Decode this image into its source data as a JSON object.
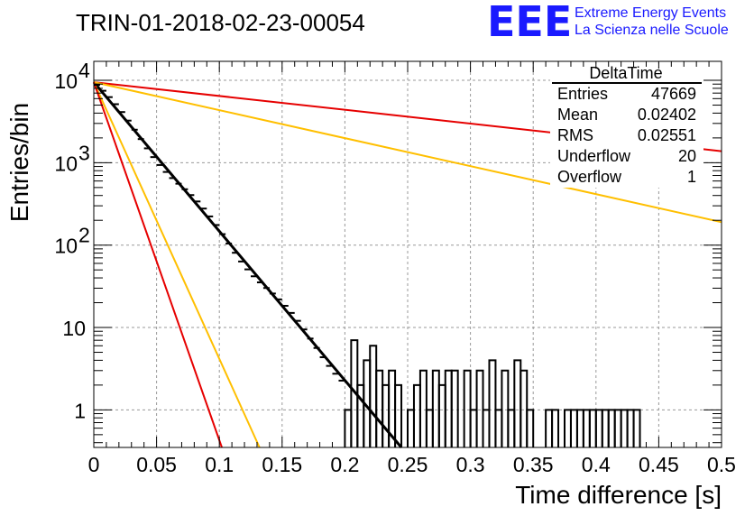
{
  "title": "TRIN-01-2018-02-23-00054",
  "logo": {
    "text": "EEE",
    "line1": "Extreme Energy Events",
    "line2": "La Scienza nelle Scuole",
    "color": "#1a1aff"
  },
  "stats": {
    "name": "DeltaTime",
    "rows": [
      {
        "label": "Entries",
        "value": "47669"
      },
      {
        "label": "Mean",
        "value": "0.02402"
      },
      {
        "label": "RMS",
        "value": "0.02551"
      },
      {
        "label": "Underflow",
        "value": "20"
      },
      {
        "label": "Overflow",
        "value": "1"
      }
    ]
  },
  "chart_data": {
    "type": "histogram",
    "xlabel": "Time difference [s]",
    "ylabel": "Entries/bin",
    "xlim": [
      0,
      0.5
    ],
    "ylim": [
      0.35,
      17000
    ],
    "log_y": true,
    "grid": true,
    "legend_position": "top-right",
    "x_ticks": [
      {
        "v": 0,
        "label": "0"
      },
      {
        "v": 0.05,
        "label": "0.05"
      },
      {
        "v": 0.1,
        "label": "0.1"
      },
      {
        "v": 0.15,
        "label": "0.15"
      },
      {
        "v": 0.2,
        "label": "0.2"
      },
      {
        "v": 0.25,
        "label": "0.25"
      },
      {
        "v": 0.3,
        "label": "0.3"
      },
      {
        "v": 0.35,
        "label": "0.35"
      },
      {
        "v": 0.4,
        "label": "0.4"
      },
      {
        "v": 0.45,
        "label": "0.45"
      },
      {
        "v": 0.5,
        "label": "0.5"
      }
    ],
    "y_ticks": [
      {
        "v": 1,
        "label": "1"
      },
      {
        "v": 10,
        "label": "10"
      },
      {
        "v": 100,
        "label": "10",
        "exp": "2"
      },
      {
        "v": 1000,
        "label": "10",
        "exp": "3"
      },
      {
        "v": 10000,
        "label": "10",
        "exp": "4"
      }
    ],
    "bin_width": 0.005,
    "bins": [
      [
        0.2,
        1
      ],
      [
        0.205,
        7
      ],
      [
        0.21,
        2
      ],
      [
        0.215,
        4
      ],
      [
        0.22,
        6
      ],
      [
        0.225,
        3
      ],
      [
        0.23,
        2
      ],
      [
        0.235,
        3
      ],
      [
        0.24,
        2
      ],
      [
        0.25,
        1
      ],
      [
        0.255,
        2
      ],
      [
        0.26,
        3
      ],
      [
        0.265,
        1
      ],
      [
        0.27,
        3
      ],
      [
        0.275,
        2
      ],
      [
        0.28,
        3
      ],
      [
        0.285,
        3
      ],
      [
        0.295,
        3
      ],
      [
        0.3,
        1
      ],
      [
        0.305,
        3
      ],
      [
        0.31,
        1
      ],
      [
        0.315,
        4
      ],
      [
        0.32,
        1
      ],
      [
        0.325,
        3
      ],
      [
        0.33,
        1
      ],
      [
        0.335,
        4
      ],
      [
        0.34,
        3
      ],
      [
        0.345,
        1
      ],
      [
        0.36,
        1
      ],
      [
        0.365,
        1
      ],
      [
        0.375,
        1
      ],
      [
        0.38,
        1
      ],
      [
        0.385,
        1
      ],
      [
        0.39,
        1
      ],
      [
        0.395,
        1
      ],
      [
        0.4,
        1
      ],
      [
        0.405,
        1
      ],
      [
        0.41,
        1
      ],
      [
        0.415,
        1
      ],
      [
        0.42,
        1
      ],
      [
        0.425,
        1
      ],
      [
        0.43,
        1
      ]
    ],
    "series": [
      {
        "color": "#000000",
        "width": 3,
        "x0": 0.0,
        "y0": 9500,
        "x1": 0.245,
        "y1": 0.35
      },
      {
        "color": "#e60000",
        "width": 2,
        "x0": 0.0,
        "y0": 9500,
        "x1": 0.5,
        "y1": 1380
      },
      {
        "color": "#ffbf00",
        "width": 2,
        "x0": 0.0,
        "y0": 9500,
        "x1": 0.5,
        "y1": 190
      },
      {
        "color": "#ffbf00",
        "width": 2,
        "x0": 0.0,
        "y0": 9500,
        "x1": 0.132,
        "y1": 0.35
      },
      {
        "color": "#e60000",
        "width": 2,
        "x0": 0.0,
        "y0": 9500,
        "x1": 0.102,
        "y1": 0.35
      }
    ]
  }
}
